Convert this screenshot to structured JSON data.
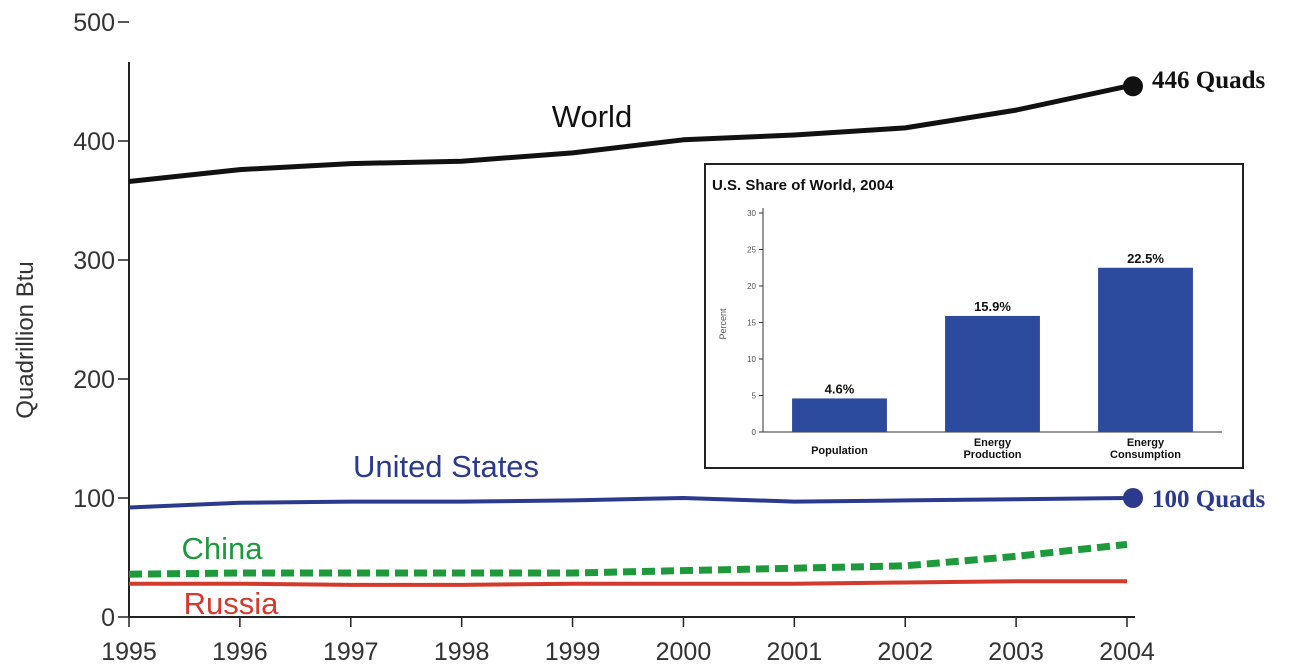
{
  "chart_data": [
    {
      "type": "line",
      "ylabel": "Quadrillion Btu",
      "ylim": [
        0,
        500
      ],
      "yticks": [
        0,
        100,
        200,
        300,
        400,
        500
      ],
      "x": [
        "1995",
        "1996",
        "1997",
        "1998",
        "1999",
        "2000",
        "2001",
        "2002",
        "2003",
        "2004"
      ],
      "grid": false,
      "series": [
        {
          "name": "World",
          "color": "#111111",
          "style": "solid",
          "values": [
            366,
            376,
            381,
            383,
            390,
            401,
            405,
            411,
            426,
            446
          ],
          "end_label": "446 Quads"
        },
        {
          "name": "United States",
          "color": "#2b3a8c",
          "style": "solid",
          "values": [
            92,
            96,
            97,
            97,
            98,
            100,
            97,
            98,
            99,
            100
          ],
          "end_label": "100 Quads"
        },
        {
          "name": "China",
          "color": "#1e9a3c",
          "style": "dotted",
          "values": [
            36,
            37,
            37,
            37,
            37,
            39,
            41,
            43,
            51,
            61
          ]
        },
        {
          "name": "Russia",
          "color": "#d33a2c",
          "style": "solid",
          "values": [
            28,
            28,
            27,
            27,
            28,
            28,
            28,
            29,
            30,
            30
          ]
        }
      ]
    },
    {
      "type": "bar",
      "title": "U.S. Share of World, 2004",
      "ylabel": "Percent",
      "ylim": [
        0,
        30
      ],
      "yticks": [
        0,
        5,
        10,
        15,
        20,
        25,
        30
      ],
      "color": "#2c4a9e",
      "categories": [
        [
          "Population"
        ],
        [
          "Energy",
          "Production"
        ],
        [
          "Energy",
          "Consumption"
        ]
      ],
      "values": [
        4.6,
        15.9,
        22.5
      ],
      "value_labels": [
        "4.6%",
        "15.9%",
        "22.5%"
      ]
    }
  ]
}
